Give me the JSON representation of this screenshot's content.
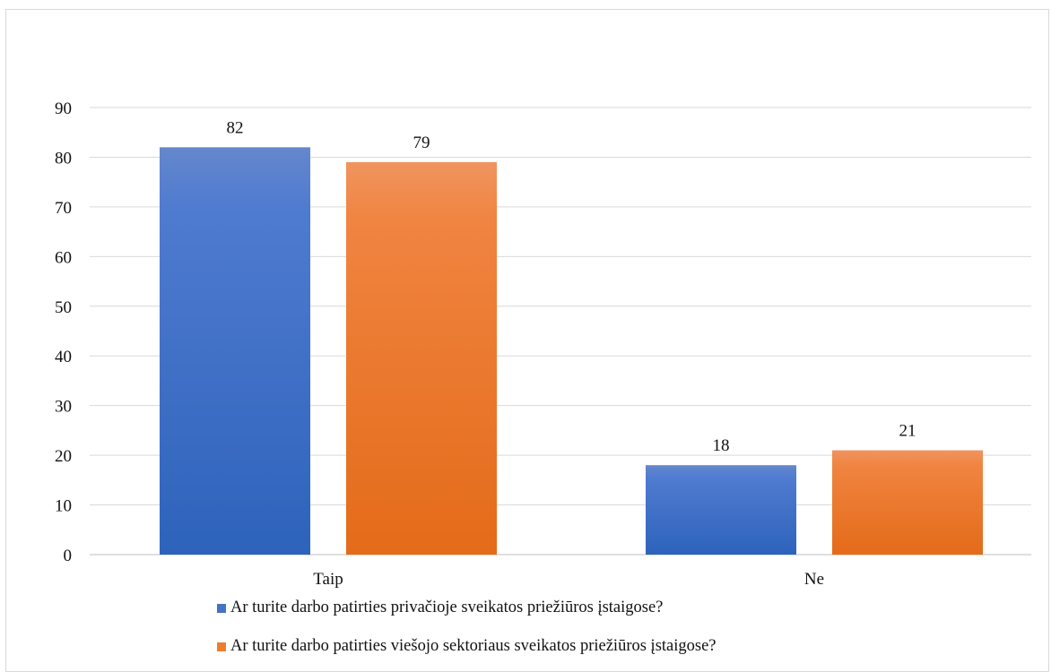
{
  "chart_data": {
    "type": "bar",
    "title": "",
    "xlabel": "",
    "ylabel": "",
    "categories": [
      "Taip",
      "Ne"
    ],
    "ylim": [
      0,
      90
    ],
    "yticks": [
      0,
      10,
      20,
      30,
      40,
      50,
      60,
      70,
      80,
      90
    ],
    "grid": true,
    "legend_position": "bottom",
    "series": [
      {
        "name": "Ar turite darbo patirties privačioje sveikatos priežiūros įstaigose?",
        "values": [
          82,
          18
        ],
        "color": "#4472c4"
      },
      {
        "name": "Ar turite darbo patirties viešojo sektoriaus sveikatos priežiūros įstaigose?",
        "values": [
          79,
          21
        ],
        "color": "#ed7d31"
      }
    ]
  }
}
